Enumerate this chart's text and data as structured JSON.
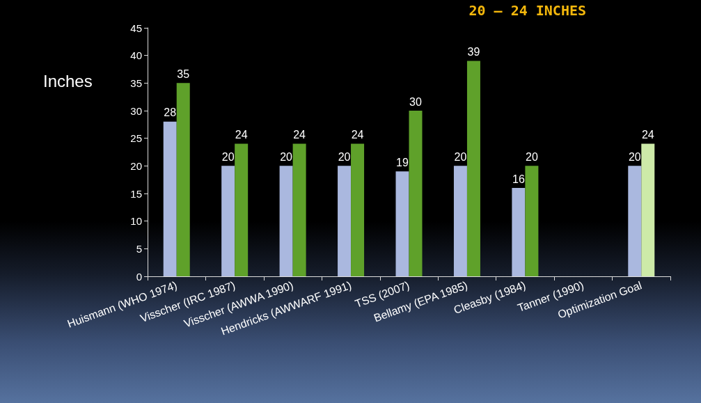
{
  "chart_data": {
    "type": "bar",
    "title": "20 – 24 INCHES",
    "ylabel": "Inches",
    "categories": [
      "Huismann (WHO 1974)",
      "Visscher (IRC 1987)",
      "Visscher (AWWA 1990)",
      "Hendricks (AWWARF 1991)",
      "TSS (2007)",
      "Bellamy (EPA 1985)",
      "Cleasby (1984)",
      "Tanner (1990)",
      "Optimization Goal"
    ],
    "series": [
      {
        "color": "#aab8df",
        "values": [
          28,
          20,
          20,
          20,
          19,
          20,
          16,
          null,
          20
        ]
      },
      {
        "color": "#5fa12a",
        "colors": [
          "#5fa12a",
          "#5fa12a",
          "#5fa12a",
          "#5fa12a",
          "#5fa12a",
          "#5fa12a",
          "#5fa12a",
          "#5fa12a",
          "#cdeaa8"
        ],
        "values": [
          35,
          24,
          24,
          24,
          30,
          39,
          20,
          null,
          24
        ]
      }
    ],
    "ylim": [
      0,
      45
    ],
    "yticks": [
      0,
      5,
      10,
      15,
      20,
      25,
      30,
      35,
      40,
      45
    ],
    "grid": false,
    "data_labels": true
  }
}
